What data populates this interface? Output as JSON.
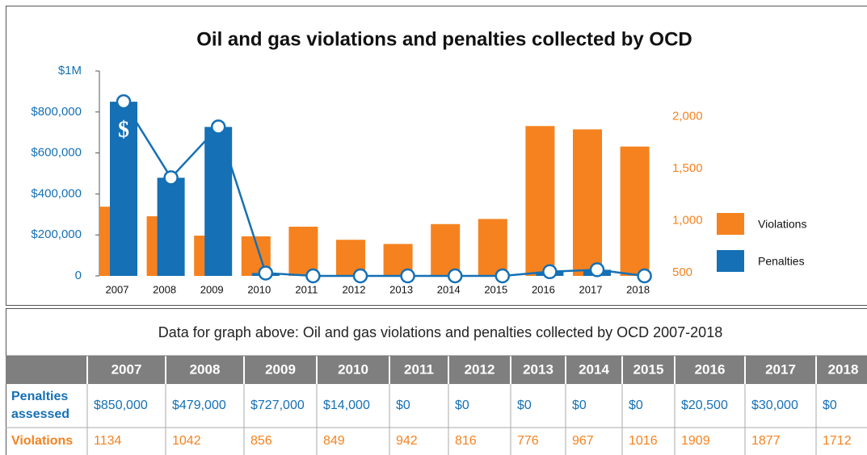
{
  "chart_data": {
    "type": "bar",
    "title": "Oil and gas violations and penalties collected by OCD",
    "categories": [
      "2007",
      "2008",
      "2009",
      "2010",
      "2011",
      "2012",
      "2013",
      "2014",
      "2015",
      "2016",
      "2017",
      "2018"
    ],
    "series": [
      {
        "name": "Violations",
        "color": "#f5821f",
        "axis": "y2",
        "values": [
          1134,
          1042,
          856,
          849,
          942,
          816,
          776,
          967,
          1016,
          1909,
          1877,
          1712
        ]
      },
      {
        "name": "Penalties",
        "color": "#1570b5",
        "values": [
          850000,
          479000,
          727000,
          14000,
          0,
          0,
          0,
          0,
          0,
          20500,
          30000,
          0
        ]
      }
    ],
    "annotation": "$",
    "ylim": [
      0,
      1000000
    ],
    "yticks": [
      0,
      {
        "value": 200000,
        "label": "$200,000"
      },
      {
        "value": 400000,
        "label": "$400,000"
      },
      {
        "value": 600000,
        "label": "$600,000"
      },
      {
        "value": 800000,
        "label": "$800,000"
      },
      {
        "value": 1000000,
        "label": "$1M"
      }
    ],
    "y2lim": [
      469,
      2438
    ],
    "y2ticks": [
      500,
      {
        "value": 1000,
        "label": "1,000"
      },
      {
        "value": 1500,
        "label": "1,500"
      },
      {
        "value": 2000,
        "label": "2,000"
      }
    ],
    "legend": "right"
  },
  "table": {
    "title": "Data for graph above: Oil and gas violations and penalties collected by OCD 2007-2018",
    "header": [
      "2007",
      "2008",
      "2009",
      "2010",
      "2011",
      "2012",
      "2013",
      "2014",
      "2015",
      "2016",
      "2017",
      "2018"
    ],
    "rows": [
      {
        "label": "Penalties assessed",
        "cells": [
          "$850,000",
          "$479,000",
          "$727,000",
          "$14,000",
          "$0",
          "$0",
          "$0",
          "$0",
          "$0",
          "$20,500",
          "$30,000",
          "$0"
        ]
      },
      {
        "label": "Violations",
        "cells": [
          "1134",
          "1042",
          "856",
          "849",
          "942",
          "816",
          "776",
          "967",
          "1016",
          "1909",
          "1877",
          "1712"
        ]
      }
    ]
  }
}
